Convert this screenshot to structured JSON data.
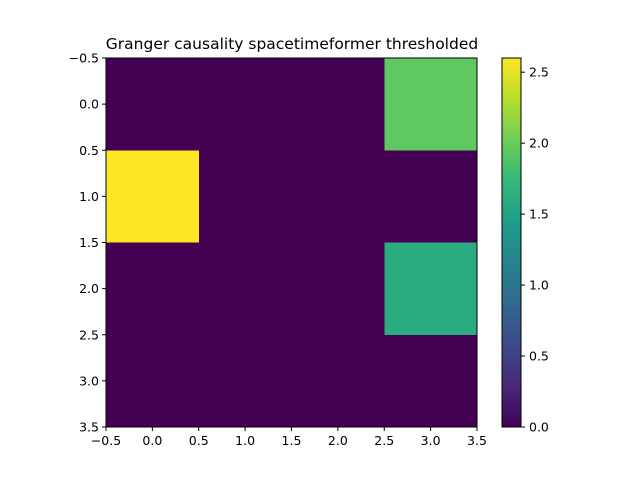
{
  "chart_data": {
    "type": "heatmap",
    "title": "Granger causality spacetimeformer thresholded",
    "xlabel": "",
    "ylabel": "",
    "colormap": "viridis",
    "grid": false,
    "legend": "none",
    "colorbar": {
      "position": "right",
      "vmin": 0.0,
      "vmax": 2.6,
      "ticks": [
        0.0,
        0.5,
        1.0,
        1.5,
        2.0,
        2.5
      ],
      "tick_labels": [
        "0.0",
        "0.5",
        "1.0",
        "1.5",
        "2.0",
        "2.5"
      ]
    },
    "x_range": [
      -0.5,
      3.5
    ],
    "y_range": [
      3.5,
      -0.5
    ],
    "x_ticks": [
      -0.5,
      0.0,
      0.5,
      1.0,
      1.5,
      2.0,
      2.5,
      3.0,
      3.5
    ],
    "x_tick_labels": [
      "−0.5",
      "0.0",
      "0.5",
      "1.0",
      "1.5",
      "2.0",
      "2.5",
      "3.0",
      "3.5"
    ],
    "y_ticks": [
      -0.5,
      0.0,
      0.5,
      1.0,
      1.5,
      2.0,
      2.5,
      3.0,
      3.5
    ],
    "y_tick_labels": [
      "−0.5",
      "0.0",
      "0.5",
      "1.0",
      "1.5",
      "2.0",
      "2.5",
      "3.0",
      "3.5"
    ],
    "matrix": [
      [
        0.0,
        0.0,
        0.0,
        1.95
      ],
      [
        2.6,
        0.0,
        0.0,
        0.0
      ],
      [
        0.0,
        0.0,
        0.0,
        1.6
      ],
      [
        0.0,
        0.0,
        0.0,
        0.0
      ]
    ]
  }
}
